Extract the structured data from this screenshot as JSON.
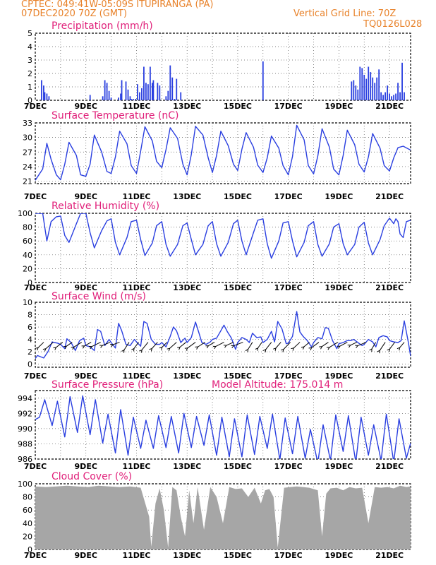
{
  "header": {
    "line1": "CPTEC:   049:41W-05:09S   ITUPIRANGA (PA)",
    "line2": "07DEC2020 70Z (GMT)",
    "grid_note": "Vertical Grid Line: 70Z",
    "run_id": "TQ0126L028"
  },
  "colors": {
    "header": "#e8822a",
    "titles": "#e0207a",
    "series": "#2a3fe0",
    "cloud": "#a6a6a6",
    "grid": "#555555"
  },
  "chart_data": [
    {
      "id": "precip",
      "type": "bar",
      "title": "Precipitation (mm/h)",
      "ylim": [
        0,
        5
      ],
      "yticks": [
        0,
        1,
        2,
        3,
        4,
        5
      ],
      "xticks": [
        "7DEC",
        "9DEC",
        "11DEC",
        "13DEC",
        "15DEC",
        "17DEC",
        "19DEC",
        "21DEC"
      ],
      "x_unit": "hours since 7DEC 00Z",
      "x": [
        6,
        8,
        9,
        11,
        13,
        52,
        64,
        66,
        68,
        70,
        72,
        79,
        81,
        82,
        86,
        88,
        90,
        91,
        93,
        95,
        97,
        99,
        101,
        103,
        105,
        107,
        109,
        111,
        112,
        116,
        118,
        124,
        126,
        128,
        130,
        132,
        134,
        138,
        216,
        300,
        302,
        304,
        306,
        308,
        310,
        312,
        314,
        316,
        318,
        320,
        322,
        324,
        326,
        328,
        330,
        332,
        334,
        336,
        338,
        340,
        342,
        344,
        346,
        348,
        350
      ],
      "values": [
        1.5,
        1.1,
        0.6,
        0.5,
        0.3,
        0.4,
        0.3,
        1.5,
        1.3,
        0.7,
        0.2,
        0.2,
        0.5,
        1.5,
        1.4,
        0.8,
        0.3,
        0.1,
        0.1,
        0.1,
        1.2,
        0.6,
        0.9,
        2.5,
        1.3,
        1.2,
        2.5,
        1.3,
        1.5,
        1.3,
        1.1,
        0.3,
        0.7,
        2.6,
        1.7,
        0.1,
        1.6,
        0.6,
        2.9,
        1.4,
        1.5,
        1.1,
        0.8,
        2.5,
        2.4,
        1.9,
        1.6,
        2.5,
        2.1,
        1.7,
        1.3,
        1.7,
        2.3,
        0.6,
        0.4,
        0.6,
        1.1,
        0.5,
        0.3,
        0.4,
        0.5,
        1.3,
        0.6,
        2.8,
        0.6
      ]
    },
    {
      "id": "temp",
      "type": "line",
      "title": "Surface Temperature (nC)",
      "ylim": [
        20.5,
        33
      ],
      "yticks": [
        21,
        24,
        27,
        30,
        33
      ],
      "xticks": [
        "7DEC",
        "9DEC",
        "11DEC",
        "13DEC",
        "15DEC",
        "17DEC",
        "19DEC",
        "21DEC"
      ],
      "x_unit": "hours since 7DEC 00Z",
      "x": [
        0,
        7,
        11,
        15,
        20,
        24,
        28,
        32,
        39,
        43,
        48,
        52,
        56,
        63,
        68,
        72,
        76,
        80,
        87,
        91,
        96,
        100,
        104,
        111,
        115,
        120,
        124,
        128,
        135,
        140,
        144,
        148,
        152,
        159,
        164,
        168,
        172,
        176,
        183,
        188,
        192,
        196,
        200,
        207,
        211,
        216,
        220,
        224,
        231,
        235,
        240,
        244,
        248,
        255,
        259,
        264,
        268,
        272,
        279,
        283,
        288,
        292,
        296,
        303,
        307,
        312,
        316,
        320,
        327,
        331,
        336,
        340,
        344,
        349,
        356
      ],
      "values": [
        21.2,
        23.5,
        28.8,
        25.5,
        22.3,
        21.3,
        24.5,
        29,
        26.3,
        22.3,
        22,
        24.5,
        30.5,
        27,
        23,
        22.6,
        26,
        31.3,
        28.7,
        24.2,
        22.6,
        27.2,
        32.2,
        29.3,
        25.1,
        23.8,
        27.5,
        32,
        29.8,
        24.5,
        22.3,
        26.5,
        32.3,
        30.5,
        25.8,
        22.8,
        26.3,
        31.3,
        28.3,
        24.5,
        23.2,
        27.6,
        31,
        28,
        24.3,
        22.8,
        25.8,
        30.3,
        27.8,
        24.2,
        22.3,
        26.1,
        32.5,
        29.5,
        24.2,
        22.5,
        26.2,
        31.8,
        28,
        23.5,
        22.3,
        26.3,
        31.5,
        28.5,
        24.5,
        22.9,
        26,
        30.8,
        27.8,
        24.2,
        23.1,
        25.8,
        27.9,
        28.2,
        27.4
      ]
    },
    {
      "id": "rh",
      "type": "line",
      "title": "Relative Humidity (%)",
      "ylim": [
        0,
        100
      ],
      "yticks": [
        0,
        20,
        40,
        60,
        80,
        100
      ],
      "xticks": [
        "7DEC",
        "9DEC",
        "11DEC",
        "13DEC",
        "15DEC",
        "17DEC",
        "19DEC",
        "21DEC"
      ],
      "x_unit": "hours since 7DEC 00Z",
      "x": [
        0,
        7,
        11,
        15,
        20,
        24,
        28,
        32,
        39,
        43,
        48,
        52,
        56,
        63,
        68,
        72,
        76,
        80,
        87,
        91,
        96,
        100,
        104,
        111,
        115,
        120,
        124,
        128,
        135,
        140,
        144,
        148,
        152,
        159,
        164,
        168,
        172,
        176,
        183,
        188,
        192,
        196,
        200,
        207,
        211,
        216,
        220,
        224,
        231,
        235,
        240,
        244,
        248,
        255,
        259,
        264,
        268,
        272,
        279,
        283,
        288,
        292,
        296,
        303,
        307,
        312,
        316,
        320,
        327,
        331,
        336,
        340,
        342,
        344,
        346,
        349,
        352,
        356
      ],
      "values": [
        100,
        100,
        60,
        88,
        95,
        96,
        68,
        58,
        85,
        100,
        100,
        72,
        50,
        75,
        89,
        92,
        58,
        40,
        65,
        88,
        90,
        62,
        39,
        57,
        82,
        88,
        55,
        38,
        55,
        82,
        86,
        62,
        40,
        55,
        82,
        88,
        56,
        38,
        58,
        85,
        90,
        60,
        40,
        72,
        90,
        92,
        56,
        35,
        60,
        86,
        88,
        60,
        37,
        58,
        82,
        88,
        55,
        38,
        56,
        80,
        85,
        56,
        40,
        55,
        80,
        87,
        57,
        40,
        62,
        82,
        93,
        85,
        92,
        88,
        70,
        65,
        88,
        90
      ]
    },
    {
      "id": "wind",
      "type": "line",
      "title": "Surface Wind (m/s)",
      "ylim": [
        -0.5,
        10
      ],
      "yticks": [
        0,
        2,
        4,
        6,
        8,
        10
      ],
      "xticks": [
        "7DEC",
        "9DEC",
        "11DEC",
        "13DEC",
        "15DEC",
        "17DEC",
        "19DEC",
        "21DEC"
      ],
      "x_unit": "hours since 7DEC 00Z",
      "x": [
        0,
        2,
        5,
        8,
        12,
        16,
        18,
        21,
        24,
        28,
        30,
        34,
        38,
        42,
        46,
        48,
        52,
        56,
        59,
        62,
        66,
        70,
        72,
        76,
        79,
        82,
        86,
        90,
        94,
        96,
        100,
        103,
        106,
        110,
        114,
        118,
        120,
        124,
        128,
        131,
        134,
        138,
        142,
        144,
        148,
        152,
        155,
        158,
        162,
        166,
        168,
        172,
        176,
        179,
        182,
        186,
        190,
        192,
        196,
        200,
        203,
        206,
        210,
        214,
        216,
        220,
        224,
        227,
        230,
        234,
        238,
        240,
        244,
        248,
        251,
        254,
        258,
        262,
        264,
        268,
        272,
        275,
        278,
        282,
        286,
        288,
        292,
        296,
        299,
        302,
        306,
        310,
        312,
        316,
        320,
        323,
        326,
        330,
        334,
        336,
        340,
        344,
        347,
        350,
        354,
        356
      ],
      "values": [
        0.9,
        1.4,
        1.2,
        1.0,
        2.0,
        3.6,
        3.5,
        3.4,
        3.2,
        2.5,
        4.1,
        3.5,
        2.2,
        3.8,
        4.2,
        3.0,
        2.8,
        2.2,
        5.6,
        5.3,
        3.0,
        4.0,
        3.5,
        2.6,
        6.6,
        5.4,
        3.2,
        3.0,
        4.0,
        3.6,
        2.9,
        6.9,
        6.6,
        4.0,
        3.2,
        3.2,
        3.5,
        2.8,
        4.5,
        6.0,
        5.4,
        3.5,
        4.2,
        3.5,
        4.3,
        6.8,
        5.2,
        3.5,
        3.2,
        3.6,
        4.0,
        4.2,
        5.4,
        6.3,
        5.3,
        4.2,
        2.4,
        3.5,
        4.3,
        4.0,
        3.5,
        5.0,
        4.3,
        4.4,
        3.5,
        4.0,
        5.3,
        3.6,
        6.9,
        5.7,
        3.3,
        3.4,
        4.5,
        8.5,
        5.2,
        4.5,
        3.8,
        2.8,
        3.5,
        4.3,
        4.1,
        5.9,
        5.8,
        3.8,
        2.5,
        3.3,
        3.5,
        3.8,
        3.8,
        4.0,
        3.5,
        3.0,
        3.2,
        4.0,
        3.6,
        2.8,
        4.3,
        4.6,
        4.4,
        3.8,
        3.6,
        3.5,
        3.8,
        7.0,
        3.4,
        1.3
      ]
    },
    {
      "id": "pressure",
      "type": "line",
      "title": "Surface Pressure (hPa)",
      "subtitle": "Model Altitude: 175.014 m",
      "ylim": [
        986,
        995
      ],
      "yticks": [
        986,
        988,
        990,
        992,
        994
      ],
      "xticks": [
        "7DEC",
        "9DEC",
        "11DEC",
        "13DEC",
        "15DEC",
        "17DEC",
        "19DEC",
        "21DEC"
      ],
      "x_unit": "hours since 7DEC 00Z",
      "x": [
        0,
        4,
        9,
        16,
        21,
        28,
        33,
        40,
        45,
        52,
        57,
        64,
        69,
        76,
        81,
        88,
        93,
        100,
        105,
        112,
        117,
        124,
        129,
        136,
        141,
        148,
        153,
        160,
        165,
        172,
        177,
        184,
        189,
        196,
        201,
        208,
        213,
        220,
        225,
        232,
        237,
        244,
        249,
        256,
        261,
        268,
        273,
        280,
        285,
        292,
        297,
        304,
        309,
        316,
        321,
        328,
        333,
        340,
        345,
        352,
        356
      ],
      "values": [
        991.2,
        991.5,
        993.8,
        990.4,
        993.6,
        988.9,
        994.2,
        989.5,
        994.3,
        989.2,
        993.8,
        988.1,
        991.9,
        986.8,
        992.5,
        986.5,
        991.5,
        987.4,
        991.1,
        987.4,
        991.7,
        987.5,
        991.6,
        986.8,
        992.0,
        987.5,
        991.6,
        987.8,
        991.8,
        986.5,
        991.5,
        986.3,
        991.3,
        986.3,
        991.8,
        986.6,
        991.6,
        987.4,
        991.9,
        985.9,
        991.4,
        986.7,
        991.6,
        986.1,
        989.9,
        985.5,
        990.5,
        985.8,
        991.8,
        987.0,
        991.7,
        985.6,
        991.5,
        986.5,
        990.5,
        985.8,
        991.9,
        985.6,
        991.3,
        986.1,
        988.1
      ]
    },
    {
      "id": "cloud",
      "type": "area",
      "title": "Cloud Cover (%)",
      "ylim": [
        0,
        100
      ],
      "yticks": [
        0,
        20,
        40,
        60,
        80,
        100
      ],
      "xticks": [
        "7DEC",
        "9DEC",
        "11DEC",
        "13DEC",
        "15DEC",
        "17DEC",
        "19DEC",
        "21DEC"
      ],
      "x_unit": "hours since 7DEC 00Z",
      "x": [
        0,
        10,
        20,
        30,
        40,
        50,
        60,
        70,
        80,
        90,
        100,
        108,
        110,
        114,
        118,
        122,
        126,
        130,
        134,
        138,
        142,
        146,
        150,
        154,
        160,
        166,
        172,
        178,
        184,
        190,
        196,
        202,
        208,
        214,
        218,
        222,
        226,
        230,
        236,
        242,
        248,
        254,
        260,
        268,
        272,
        276,
        280,
        286,
        292,
        298,
        304,
        310,
        316,
        322,
        328,
        334,
        340,
        346,
        352,
        356
      ],
      "values": [
        96,
        95,
        96,
        97,
        96,
        95,
        97,
        96,
        95,
        96,
        94,
        50,
        4,
        70,
        93,
        60,
        3,
        95,
        90,
        50,
        20,
        90,
        40,
        95,
        30,
        95,
        80,
        40,
        95,
        92,
        93,
        80,
        94,
        70,
        90,
        92,
        80,
        3,
        94,
        95,
        96,
        95,
        94,
        90,
        20,
        85,
        93,
        94,
        90,
        95,
        93,
        94,
        40,
        95,
        94,
        95,
        93,
        97,
        95,
        96
      ]
    }
  ]
}
